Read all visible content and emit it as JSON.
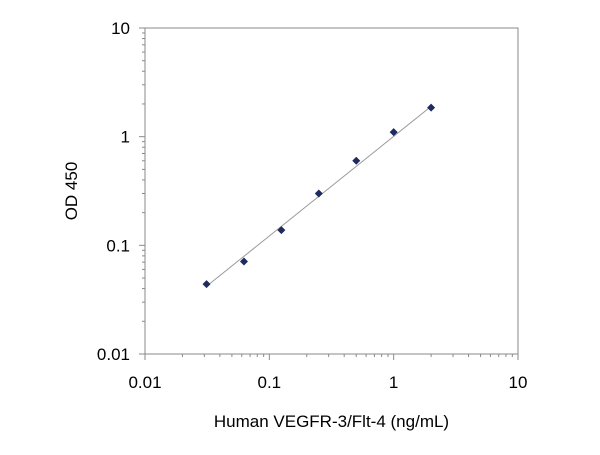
{
  "chart_data": {
    "type": "scatter",
    "title": "",
    "xlabel": "Human VEGFR-3/Flt-4 (ng/mL)",
    "ylabel": "OD 450",
    "x_scale": "log",
    "y_scale": "log",
    "xlim": [
      0.01,
      10
    ],
    "ylim": [
      0.01,
      10
    ],
    "x_ticks": [
      "0.01",
      "0.1",
      "1",
      "10"
    ],
    "y_ticks": [
      "0.01",
      "0.1",
      "1",
      "10"
    ],
    "grid": false,
    "legend": "none",
    "series": [
      {
        "color": "#1f2a5e",
        "marker": "diamond",
        "x": [
          0.03125,
          0.0625,
          0.125,
          0.25,
          0.5,
          1,
          2
        ],
        "y": [
          0.044,
          0.071,
          0.138,
          0.3,
          0.6,
          1.1,
          1.85
        ]
      }
    ],
    "trendline": {
      "color": "#9a9a9a",
      "x": [
        0.03125,
        2
      ],
      "y": [
        0.042,
        1.9
      ]
    }
  }
}
